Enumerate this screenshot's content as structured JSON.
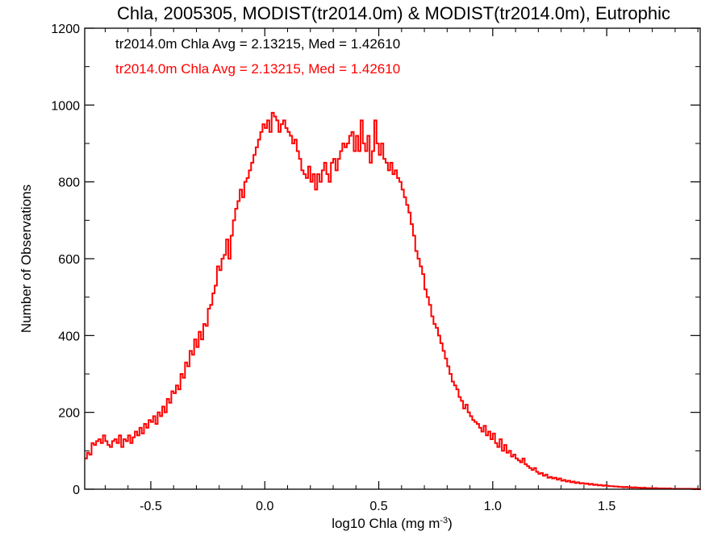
{
  "chart_data": {
    "type": "line",
    "title": "Chla, 2005305, MODIST(tr2014.0m) & MODIST(tr2014.0m), Eutrophic",
    "xlabel": "log10 Chla (mg m",
    "xlabel_sup": "-3",
    "xlabel_end": ")",
    "ylabel": "Number of Observations",
    "xlim": [
      -0.79,
      1.91
    ],
    "ylim": [
      0,
      1200
    ],
    "x_ticks": [
      "-0.5",
      "0.0",
      "0.5",
      "1.0",
      "1.5"
    ],
    "x_tick_values": [
      -0.5,
      0.0,
      0.5,
      1.0,
      1.5
    ],
    "y_ticks": [
      "0",
      "200",
      "400",
      "600",
      "800",
      "1000",
      "1200"
    ],
    "y_tick_values": [
      0,
      200,
      400,
      600,
      800,
      1000,
      1200
    ],
    "grid": false,
    "legend_position": "top-left",
    "annotations": [
      {
        "text": "tr2014.0m Chla Avg = 2.13215, Med = 1.42610",
        "color": "#000000"
      },
      {
        "text": "tr2014.0m Chla Avg = 2.13215, Med = 1.42610",
        "color": "#ff0000"
      }
    ],
    "x_start": -0.79,
    "bin_width": 0.01,
    "series": [
      {
        "color": "#ff0000",
        "style": "step",
        "values": [
          80,
          95,
          90,
          120,
          115,
          125,
          130,
          120,
          140,
          125,
          115,
          110,
          125,
          130,
          120,
          140,
          110,
          130,
          125,
          140,
          120,
          135,
          150,
          140,
          160,
          145,
          170,
          160,
          180,
          175,
          190,
          170,
          200,
          190,
          215,
          200,
          235,
          225,
          255,
          250,
          270,
          260,
          300,
          290,
          330,
          320,
          360,
          350,
          390,
          370,
          410,
          390,
          430,
          425,
          470,
          480,
          510,
          530,
          580,
          570,
          600,
          610,
          650,
          600,
          660,
          700,
          730,
          750,
          780,
          760,
          800,
          810,
          830,
          850,
          870,
          890,
          910,
          930,
          950,
          940,
          960,
          930,
          980,
          970,
          960,
          930,
          950,
          960,
          940,
          930,
          920,
          900,
          910,
          880,
          860,
          830,
          820,
          810,
          840,
          800,
          820,
          780,
          820,
          800,
          830,
          850,
          820,
          800,
          850,
          860,
          830,
          860,
          880,
          900,
          890,
          900,
          920,
          930,
          880,
          920,
          880,
          960,
          900,
          880,
          920,
          850,
          880,
          960,
          900,
          870,
          900,
          860,
          850,
          830,
          850,
          820,
          830,
          810,
          800,
          780,
          760,
          740,
          720,
          690,
          660,
          620,
          600,
          580,
          560,
          520,
          500,
          480,
          450,
          430,
          420,
          400,
          380,
          360,
          340,
          320,
          300,
          280,
          270,
          260,
          240,
          230,
          210,
          220,
          200,
          190,
          180,
          175,
          170,
          160,
          150,
          165,
          140,
          150,
          130,
          145,
          120,
          110,
          130,
          100,
          115,
          95,
          100,
          85,
          90,
          80,
          75,
          70,
          80,
          65,
          60,
          55,
          50,
          55,
          45,
          40,
          42,
          35,
          38,
          30,
          32,
          28,
          30,
          25,
          28,
          22,
          24,
          20,
          22,
          18,
          20,
          16,
          18,
          15,
          16,
          14,
          15,
          12,
          14,
          11,
          12,
          10,
          11,
          9,
          10,
          9,
          8,
          8,
          7,
          7,
          6,
          6,
          5,
          6,
          5,
          5,
          4,
          5,
          4,
          4,
          3,
          4,
          3,
          3,
          3,
          2,
          3,
          2,
          2,
          2,
          2,
          1,
          2,
          1,
          1,
          1,
          1,
          1,
          1,
          1,
          1,
          1,
          1,
          0,
          1,
          0,
          1,
          0,
          0,
          1,
          0,
          0,
          0,
          0,
          0,
          0,
          0,
          0,
          0,
          0,
          0,
          0,
          0,
          0,
          0,
          0,
          0,
          0,
          0
        ]
      }
    ]
  }
}
